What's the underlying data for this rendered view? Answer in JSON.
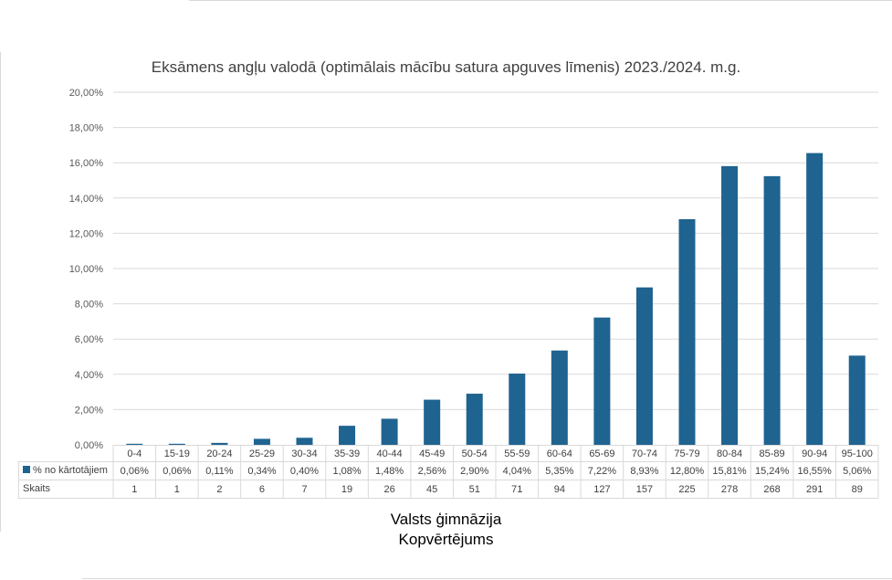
{
  "chart_data": {
    "type": "bar",
    "title": "Eksāmens angļu valodā (optimālais mācību satura apguves līmenis) 2023./2024. m.g.",
    "categories": [
      "0-4",
      "15-19",
      "20-24",
      "25-29",
      "30-34",
      "35-39",
      "40-44",
      "45-49",
      "50-54",
      "55-59",
      "60-64",
      "65-69",
      "70-74",
      "75-79",
      "80-84",
      "85-89",
      "90-94",
      "95-100"
    ],
    "series": [
      {
        "name": "% no kārtotājiem",
        "values": [
          0.06,
          0.06,
          0.11,
          0.34,
          0.4,
          1.08,
          1.48,
          2.56,
          2.9,
          4.04,
          5.35,
          7.22,
          8.93,
          12.8,
          15.81,
          15.24,
          16.55,
          5.06
        ],
        "labels": [
          "0,06%",
          "0,06%",
          "0,11%",
          "0,34%",
          "0,40%",
          "1,08%",
          "1,48%",
          "2,56%",
          "2,90%",
          "4,04%",
          "5,35%",
          "7,22%",
          "8,93%",
          "12,80%",
          "15,81%",
          "15,24%",
          "16,55%",
          "5,06%"
        ],
        "color": "#1f6391"
      }
    ],
    "table_rows": [
      {
        "name": "Skaits",
        "values": [
          "1",
          "1",
          "2",
          "6",
          "7",
          "19",
          "26",
          "45",
          "51",
          "71",
          "94",
          "127",
          "157",
          "225",
          "278",
          "268",
          "291",
          "89"
        ]
      }
    ],
    "ylim": [
      0,
      20
    ],
    "yticks": [
      "0,00%",
      "2,00%",
      "4,00%",
      "6,00%",
      "8,00%",
      "10,00%",
      "12,00%",
      "14,00%",
      "16,00%",
      "18,00%",
      "20,00%"
    ],
    "grid": true,
    "legend": "in data table"
  },
  "caption": {
    "line1": "Valsts ģimnāzija",
    "line2": "Kopvērtējums"
  }
}
